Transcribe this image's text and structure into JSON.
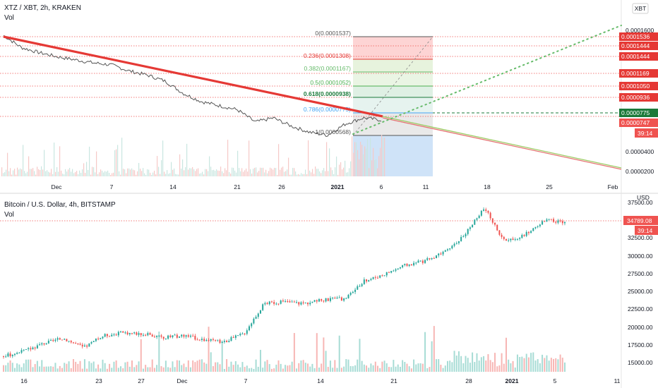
{
  "top": {
    "title": "XTZ / XBT, 2h, KRAKEN",
    "vol_label": "Vol",
    "currency": "XBT",
    "time_ticks": [
      "Dec",
      "7",
      "14",
      "21",
      "26",
      "2021",
      "6",
      "11",
      "18",
      "25",
      "Feb"
    ],
    "price_ticks": [
      "0.0001600",
      "0.0000400",
      "0.0000200"
    ],
    "fib": [
      {
        "label": "0(0.0001537)",
        "value": 0.0001537,
        "color": "#555555"
      },
      {
        "label": "0.236(0.0001308)",
        "value": 0.0001308,
        "color": "#e53935"
      },
      {
        "label": "0.382(0.0001167)",
        "value": 0.0001167,
        "color": "#66bb6a"
      },
      {
        "label": "0.5(0.0001052)",
        "value": 0.0001052,
        "color": "#4caf50"
      },
      {
        "label": "0.618(0.0000938)",
        "value": 9.38e-05,
        "color": "#1b7a3a"
      },
      {
        "label": "0.786(0.0000775)",
        "value": 7.75e-05,
        "color": "#42a5f5"
      },
      {
        "label": "1(0.0000568)",
        "value": 5.68e-05,
        "color": "#555555"
      }
    ],
    "price_badges": [
      {
        "text": "0.0001536",
        "color": "#e53935"
      },
      {
        "text": "0.0001444",
        "color": "#e53935"
      },
      {
        "text": "0.0001444",
        "color": "#e53935"
      },
      {
        "text": "0.0001169",
        "color": "#e53935"
      },
      {
        "text": "0.0001050",
        "color": "#e53935"
      },
      {
        "text": "0.0000936",
        "color": "#e53935"
      },
      {
        "text": "0.0000775",
        "color": "#1b7a3a"
      },
      {
        "text": "0.0000747",
        "color": "#ef5350"
      },
      {
        "text": "39:14",
        "color": "#ef5350"
      }
    ],
    "chart_data": {
      "type": "line",
      "title": "XTZ / XBT, 2h, KRAKEN",
      "price_axis": "XBT",
      "x_labels": [
        "Dec",
        "7",
        "14",
        "21",
        "26",
        "2021",
        "6"
      ],
      "series": [
        {
          "values": [
            0.000155,
            0.000143,
            0.000138,
            0.000134,
            0.000131,
            0.000128,
            0.000126,
            0.00012,
            0.000116,
            0.00011,
            9.8e-05,
            9e-05,
            8.6e-05,
            8.2e-05,
            7e-05,
            7.4e-05,
            6.6e-05,
            6e-05,
            5.7e-05,
            6.8e-05,
            7.4e-05,
            7.2e-05
          ]
        }
      ]
    }
  },
  "bottom": {
    "title": "Bitcoin / U.S. Dollar, 4h, BITSTAMP",
    "vol_label": "Vol",
    "currency": "USD",
    "time_ticks": [
      "16",
      "23",
      "27",
      "Dec",
      "7",
      "14",
      "21",
      "28",
      "2021",
      "5",
      "11"
    ],
    "price_ticks": [
      "37500.00",
      "32500.00",
      "30000.00",
      "27500.00",
      "25000.00",
      "22500.00",
      "20000.00",
      "17500.00",
      "15000.00"
    ],
    "price_badges": [
      {
        "text": "34789.08",
        "color": "#ef5350"
      },
      {
        "text": "39:14",
        "color": "#ef5350"
      }
    ],
    "chart_data": {
      "type": "line",
      "title": "Bitcoin / U.S. Dollar, 4h, BITSTAMP",
      "price_axis": "USD",
      "x_labels": [
        "16",
        "23",
        "27",
        "Dec",
        "7",
        "14",
        "21",
        "28",
        "2021",
        "5"
      ],
      "ylim": [
        14000,
        38500
      ],
      "series": [
        {
          "values": [
            16000,
            16700,
            17800,
            18500,
            17200,
            18900,
            19300,
            19100,
            18600,
            18900,
            18300,
            18000,
            19200,
            23400,
            23600,
            23400,
            23900,
            24000,
            26500,
            27500,
            28700,
            29300,
            30500,
            33000,
            36700,
            32000,
            33000,
            35000,
            34789
          ]
        }
      ]
    }
  }
}
